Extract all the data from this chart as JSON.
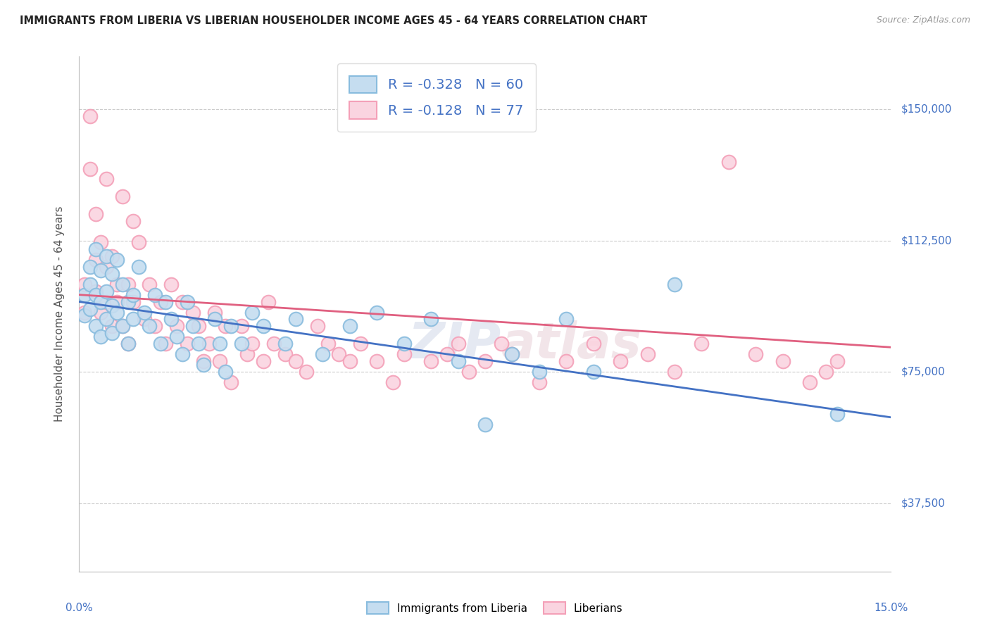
{
  "title": "IMMIGRANTS FROM LIBERIA VS LIBERIAN HOUSEHOLDER INCOME AGES 45 - 64 YEARS CORRELATION CHART",
  "source": "Source: ZipAtlas.com",
  "ylabel": "Householder Income Ages 45 - 64 years",
  "ytick_labels": [
    "$37,500",
    "$75,000",
    "$112,500",
    "$150,000"
  ],
  "ytick_values": [
    37500,
    75000,
    112500,
    150000
  ],
  "xmin": 0.0,
  "xmax": 0.15,
  "ymin": 18000,
  "ymax": 165000,
  "blue_color": "#89bcde",
  "pink_color": "#f4a0b8",
  "blue_line_color": "#4472c4",
  "pink_line_color": "#e06080",
  "blue_fill": "#c5ddf0",
  "pink_fill": "#fad4e0",
  "watermark": "ZIPatlas",
  "R_blue": -0.328,
  "N_blue": 60,
  "R_pink": -0.128,
  "N_pink": 77,
  "blue_scatter_x": [
    0.001,
    0.001,
    0.002,
    0.002,
    0.002,
    0.003,
    0.003,
    0.003,
    0.004,
    0.004,
    0.004,
    0.005,
    0.005,
    0.005,
    0.006,
    0.006,
    0.006,
    0.007,
    0.007,
    0.008,
    0.008,
    0.009,
    0.009,
    0.01,
    0.01,
    0.011,
    0.012,
    0.013,
    0.014,
    0.015,
    0.016,
    0.017,
    0.018,
    0.019,
    0.02,
    0.021,
    0.022,
    0.023,
    0.025,
    0.026,
    0.027,
    0.028,
    0.03,
    0.032,
    0.034,
    0.038,
    0.04,
    0.045,
    0.05,
    0.055,
    0.06,
    0.065,
    0.07,
    0.075,
    0.08,
    0.085,
    0.09,
    0.095,
    0.11,
    0.14
  ],
  "blue_scatter_y": [
    97000,
    91000,
    105000,
    100000,
    93000,
    110000,
    97000,
    88000,
    104000,
    95000,
    85000,
    108000,
    98000,
    90000,
    103000,
    94000,
    86000,
    107000,
    92000,
    100000,
    88000,
    95000,
    83000,
    97000,
    90000,
    105000,
    92000,
    88000,
    97000,
    83000,
    95000,
    90000,
    85000,
    80000,
    95000,
    88000,
    83000,
    77000,
    90000,
    83000,
    75000,
    88000,
    83000,
    92000,
    88000,
    83000,
    90000,
    80000,
    88000,
    92000,
    83000,
    90000,
    78000,
    60000,
    80000,
    75000,
    90000,
    75000,
    100000,
    63000
  ],
  "pink_scatter_x": [
    0.001,
    0.001,
    0.002,
    0.002,
    0.003,
    0.003,
    0.003,
    0.004,
    0.004,
    0.005,
    0.005,
    0.005,
    0.006,
    0.006,
    0.007,
    0.007,
    0.008,
    0.008,
    0.009,
    0.009,
    0.01,
    0.01,
    0.011,
    0.012,
    0.013,
    0.014,
    0.015,
    0.016,
    0.017,
    0.018,
    0.019,
    0.02,
    0.021,
    0.022,
    0.023,
    0.024,
    0.025,
    0.026,
    0.027,
    0.028,
    0.03,
    0.031,
    0.032,
    0.034,
    0.035,
    0.036,
    0.038,
    0.04,
    0.042,
    0.044,
    0.046,
    0.048,
    0.05,
    0.052,
    0.055,
    0.058,
    0.06,
    0.065,
    0.068,
    0.07,
    0.072,
    0.075,
    0.078,
    0.08,
    0.085,
    0.09,
    0.095,
    0.1,
    0.105,
    0.11,
    0.115,
    0.12,
    0.125,
    0.13,
    0.135,
    0.138,
    0.14
  ],
  "pink_scatter_y": [
    100000,
    92000,
    133000,
    148000,
    107000,
    98000,
    120000,
    92000,
    112000,
    130000,
    95000,
    105000,
    88000,
    108000,
    95000,
    100000,
    125000,
    88000,
    100000,
    83000,
    118000,
    95000,
    112000,
    90000,
    100000,
    88000,
    95000,
    83000,
    100000,
    88000,
    95000,
    83000,
    92000,
    88000,
    78000,
    83000,
    92000,
    78000,
    88000,
    72000,
    88000,
    80000,
    83000,
    78000,
    95000,
    83000,
    80000,
    78000,
    75000,
    88000,
    83000,
    80000,
    78000,
    83000,
    78000,
    72000,
    80000,
    78000,
    80000,
    83000,
    75000,
    78000,
    83000,
    80000,
    72000,
    78000,
    83000,
    78000,
    80000,
    75000,
    83000,
    135000,
    80000,
    78000,
    72000,
    75000,
    78000
  ]
}
